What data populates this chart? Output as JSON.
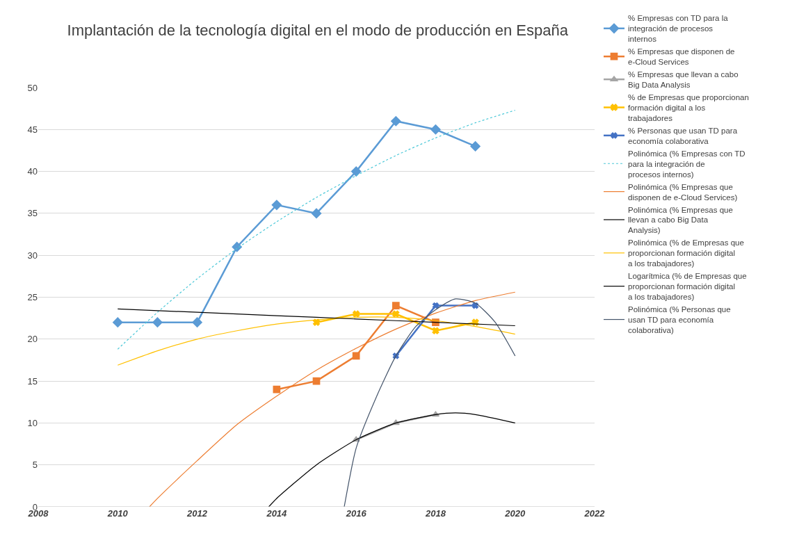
{
  "chart_data": {
    "type": "line",
    "title": "Implantación de la tecnología digital en el modo de producción en España",
    "xlim": [
      2008,
      2022
    ],
    "xticks": [
      2008,
      2010,
      2012,
      2014,
      2016,
      2018,
      2020,
      2022
    ],
    "ylim": [
      0,
      50
    ],
    "yticks": [
      0,
      5,
      10,
      15,
      20,
      25,
      30,
      35,
      40,
      45,
      50
    ],
    "grid": "y",
    "legend": "right",
    "series": [
      {
        "name": "% Empresas con TD para la integración de procesos internos",
        "color": "#5b9bd5",
        "marker": "diamond",
        "x": [
          2010,
          2011,
          2012,
          2013,
          2014,
          2015,
          2016,
          2017,
          2018,
          2019
        ],
        "values": [
          22,
          22,
          22,
          31,
          36,
          35,
          40,
          46,
          45,
          43
        ]
      },
      {
        "name": "% Empresas que disponen de e-Cloud Services",
        "color": "#ed7d31",
        "marker": "square",
        "x": [
          2014,
          2015,
          2016,
          2017,
          2018
        ],
        "values": [
          14,
          15,
          18,
          24,
          22
        ]
      },
      {
        "name": "% Empresas que llevan a cabo Big Data Analysis",
        "color": "#a5a5a5",
        "marker": "triangle",
        "x": [
          2016,
          2017,
          2018
        ],
        "values": [
          8,
          10,
          11
        ]
      },
      {
        "name": "% de Empresas que proporcionan formación digital a los trabajadores",
        "color": "#ffc000",
        "marker": "cross",
        "x": [
          2015,
          2016,
          2017,
          2018,
          2019
        ],
        "values": [
          22,
          23,
          23,
          21,
          22
        ]
      },
      {
        "name": "% Personas que usan TD para economía colaborativa",
        "color": "#4472c4",
        "marker": "cross",
        "x": [
          2017,
          2018,
          2019
        ],
        "values": [
          18,
          24,
          24
        ]
      },
      {
        "name": "Polinómica (% Empresas con TD para la integración de procesos internos)",
        "color": "#4bc8d8",
        "marker": "none",
        "line_style": "dotted",
        "x": [
          2010,
          2011,
          2012,
          2013,
          2014,
          2015,
          2016,
          2017,
          2018,
          2019,
          2020
        ],
        "values": [
          18.8,
          23.2,
          27.2,
          30.8,
          34,
          36.9,
          39.5,
          41.9,
          44,
          45.8,
          47.3
        ]
      },
      {
        "name": "Polinómica (% Empresas que disponen de e-Cloud Services)",
        "color": "#ed7d31",
        "marker": "none",
        "x": [
          2010.8,
          2011,
          2012,
          2013,
          2014,
          2015,
          2016,
          2017,
          2018,
          2019,
          2020
        ],
        "values": [
          0,
          1,
          5.5,
          9.8,
          13.2,
          16.3,
          18.9,
          21.2,
          23.1,
          24.6,
          25.6
        ]
      },
      {
        "name": "Polinómica (% Empresas que llevan a cabo Big Data Analysis)",
        "color": "#000000",
        "marker": "none",
        "x": [
          2013.8,
          2014,
          2015,
          2016,
          2017,
          2018,
          2018.5,
          2019,
          2020
        ],
        "values": [
          0,
          1,
          5,
          8,
          10,
          11,
          11.2,
          11,
          10
        ]
      },
      {
        "name": "Polinómica (% de Empresas que proporcionan formación digital a los trabajadores)",
        "color": "#ffc000",
        "marker": "none",
        "x": [
          2010,
          2011,
          2012,
          2013,
          2014,
          2015,
          2016,
          2017,
          2018,
          2019,
          2020
        ],
        "values": [
          16.9,
          18.6,
          20,
          21,
          21.8,
          22.3,
          22.6,
          22.6,
          22.2,
          21.5,
          20.6
        ]
      },
      {
        "name": "Logarítmica (% de Empresas que proporcionan formación digital a los trabajadores)",
        "color": "#000000",
        "marker": "none",
        "x": [
          2010,
          2012,
          2014,
          2016,
          2018,
          2020
        ],
        "values": [
          23.6,
          23.2,
          22.8,
          22.4,
          22,
          21.6
        ]
      },
      {
        "name": "Polinómica (% Personas que usan TD para economía colaborativa)",
        "color": "#44546a",
        "marker": "none",
        "x": [
          2015.7,
          2016,
          2016.5,
          2017,
          2017.5,
          2018,
          2018.5,
          2019,
          2019.5,
          2020
        ],
        "values": [
          0,
          7,
          13,
          18,
          21.5,
          23.5,
          24.8,
          24.3,
          22,
          18
        ]
      }
    ]
  }
}
